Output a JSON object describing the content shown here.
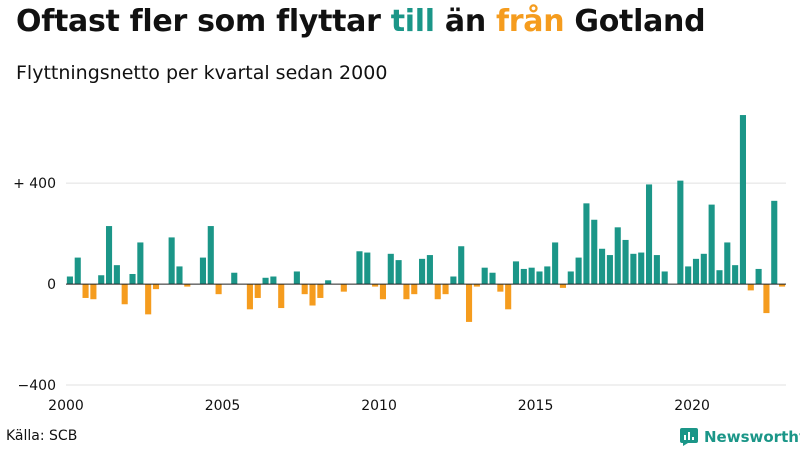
{
  "header": {
    "title_part1": "Oftast fler som flyttar ",
    "title_till": "till",
    "title_part2": " än ",
    "title_fran": "från",
    "title_part3": " Gotland",
    "subtitle": "Flyttningsnetto per kvartal sedan 2000"
  },
  "footer": {
    "source": "Källa: SCB",
    "brand": "Newsworthy"
  },
  "colors": {
    "positive": "#1b9688",
    "negative": "#f59c1e",
    "grid": "#e0e0e0",
    "zero_line": "#222222",
    "brand": "#1b9688"
  },
  "chart_data": {
    "type": "bar",
    "x_ticks": [
      "2000",
      "2005",
      "2010",
      "2015",
      "2020"
    ],
    "y_ticks": [
      {
        "value": 400,
        "label": "+ 400"
      },
      {
        "value": 0,
        "label": "0"
      },
      {
        "value": -400,
        "label": "−400"
      }
    ],
    "ylim": [
      -400,
      690
    ],
    "grid": true,
    "start_year": 2000,
    "series": [
      {
        "values": [
          30,
          105,
          -55,
          -60,
          35,
          230,
          75,
          -80,
          40,
          165,
          -120,
          -20,
          0,
          185,
          70,
          -10,
          0,
          105,
          230,
          -40,
          0,
          45,
          0,
          -100,
          -55,
          25,
          30,
          -95,
          0,
          50,
          -40,
          -85,
          -55,
          15,
          0,
          -30,
          0,
          130,
          125,
          -10,
          -60,
          120,
          95,
          -60,
          -40,
          100,
          115,
          -60,
          -40,
          30,
          150,
          -150,
          -10,
          65,
          45,
          -30,
          -100,
          90,
          60,
          65,
          50,
          70,
          165,
          -15,
          50,
          105,
          320,
          255,
          140,
          115,
          225,
          175,
          120,
          125,
          395,
          115,
          50,
          0,
          410,
          70,
          100,
          120,
          315,
          55,
          165,
          75,
          670,
          -25,
          60,
          -115,
          330,
          -10
        ]
      }
    ]
  }
}
